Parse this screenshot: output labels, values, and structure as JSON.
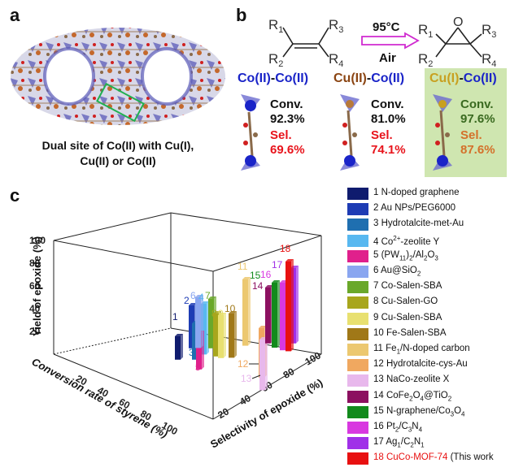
{
  "panel_a": {
    "label": "a",
    "caption_line1": "Dual site of Co(II) with Cu(I),",
    "caption_line2": "Cu(II) or Co(II)"
  },
  "panel_b": {
    "label": "b",
    "substituents": {
      "r1": "R",
      "r1_sub": "1",
      "r2": "R",
      "r2_sub": "2",
      "r3": "R",
      "r3_sub": "3",
      "r4": "R",
      "r4_sub": "4"
    },
    "temperature": "95°C",
    "atmosphere": "Air",
    "cells": [
      {
        "title_a": "Co(II)",
        "title_dash": "-",
        "title_b": "Co(II)",
        "conv_label": "Conv.",
        "conv_value": "92.3%",
        "sel_label": "Sel.",
        "sel_value": "69.6%"
      },
      {
        "title_a": "Cu(II)",
        "title_dash": "-",
        "title_b": "Co(II)",
        "conv_label": "Conv.",
        "conv_value": "81.0%",
        "sel_label": "Sel.",
        "sel_value": "74.1%"
      },
      {
        "title_a": "Cu(I)",
        "title_dash": "-",
        "title_b": "Co(II)",
        "conv_label": "Conv.",
        "conv_value": "97.6%",
        "sel_label": "Sel.",
        "sel_value": "87.6%"
      }
    ],
    "colors": {
      "co": "#1a24c8",
      "cu2": "#8b4513",
      "cu1": "#c8a020",
      "conv": "#111111",
      "sel": "#e8141c",
      "highlight": "#cfe6b0"
    }
  },
  "panel_c": {
    "label": "c",
    "zlabel": "Yield of epoxide (%)",
    "ylabel": "Conversion rate of styrene (%)",
    "xlabel": "Selectivity of epoxide (%)",
    "z_ticks": [
      "20",
      "40",
      "60",
      "80",
      "100"
    ],
    "y_ticks": [
      "20",
      "40",
      "60",
      "80",
      "100"
    ],
    "x_ticks": [
      "20",
      "40",
      "60",
      "80",
      "100"
    ],
    "legend": [
      {
        "num": "1",
        "pre": "N-doped graphene",
        "color": "#0f1b6e"
      },
      {
        "num": "2",
        "pre": "Au NPs/PEG6000",
        "color": "#1e3cb4"
      },
      {
        "num": "3",
        "pre": "Hydrotalcite-met-Au",
        "color": "#1f6fb0"
      },
      {
        "num": "4",
        "pre": "Co",
        "sup": "2+",
        "post": "-zeolite Y",
        "color": "#58b8f0"
      },
      {
        "num": "5",
        "pre": "(PW",
        "sub": "11",
        "mid": ")",
        "sub2": "2",
        "post": "/Al",
        "sub3": "2",
        "post2": "O",
        "sub4": "3",
        "color": "#e0208c"
      },
      {
        "num": "6",
        "pre": "Au@SiO",
        "sub": "2",
        "color": "#8aa6f0"
      },
      {
        "num": "7",
        "pre": "Co-Salen-SBA",
        "color": "#6aa82a"
      },
      {
        "num": "8",
        "pre": "Cu-Salen-GO",
        "color": "#a8a61c"
      },
      {
        "num": "9",
        "pre": "Cu-Salen-SBA",
        "color": "#e8e070"
      },
      {
        "num": "10",
        "pre": "Fe-Salen-SBA",
        "color": "#a07818"
      },
      {
        "num": "11",
        "pre": "Fe",
        "sub": "1",
        "post": "/N-doped carbon",
        "color": "#ecc870"
      },
      {
        "num": "12",
        "pre": "Hydrotalcite-cys-Au",
        "color": "#f0a860"
      },
      {
        "num": "13",
        "pre": "NaCo-zeolite X",
        "color": "#e8b8ec"
      },
      {
        "num": "14",
        "pre": "CoFe",
        "sub": "2",
        "post": "O",
        "sub2": "4",
        "post2": "@TiO",
        "sub3": "2",
        "color": "#8c1060"
      },
      {
        "num": "15",
        "pre": "N-graphene/Co",
        "sub": "3",
        "post": "O",
        "sub2": "4",
        "color": "#128a1c"
      },
      {
        "num": "16",
        "pre": "Pt",
        "sub": "2",
        "post": "/C",
        "sub2": "3",
        "post2": "N",
        "sub3": "4",
        "color": "#d838e0"
      },
      {
        "num": "17",
        "pre": "Ag",
        "sub": "1",
        "post": "/C",
        "sub2": "2",
        "post2": "N",
        "sub3": "1",
        "color": "#a030e8"
      },
      {
        "num": "18",
        "pre": "CuCo-MOF-74",
        "post_plain": " (This work",
        "color": "#e81010"
      }
    ],
    "chart_data": {
      "type": "bar",
      "zlabel": "Yield of epoxide (%)",
      "ylabel": "Conversion rate of styrene (%)",
      "xlabel": "Selectivity of epoxide (%)",
      "ticks": [
        "20",
        "40",
        "60",
        "80",
        "100"
      ],
      "series": [
        {
          "name": "1",
          "yield": 18
        },
        {
          "name": "2",
          "yield": 33
        },
        {
          "name": "3",
          "yield": 28
        },
        {
          "name": "4",
          "yield": 39
        },
        {
          "name": "5",
          "yield": 28
        },
        {
          "name": "6",
          "yield": 39
        },
        {
          "name": "7",
          "yield": 38
        },
        {
          "name": "8",
          "yield": 33
        },
        {
          "name": "9",
          "yield": 33
        },
        {
          "name": "10",
          "yield": 34
        },
        {
          "name": "11",
          "yield": 51
        },
        {
          "name": "12",
          "yield": 38
        },
        {
          "name": "13",
          "yield": 39
        },
        {
          "name": "14",
          "yield": 43
        },
        {
          "name": "15",
          "yield": 50
        },
        {
          "name": "16",
          "yield": 52
        },
        {
          "name": "17",
          "yield": 58
        },
        {
          "name": "18",
          "yield": 69
        }
      ]
    }
  }
}
